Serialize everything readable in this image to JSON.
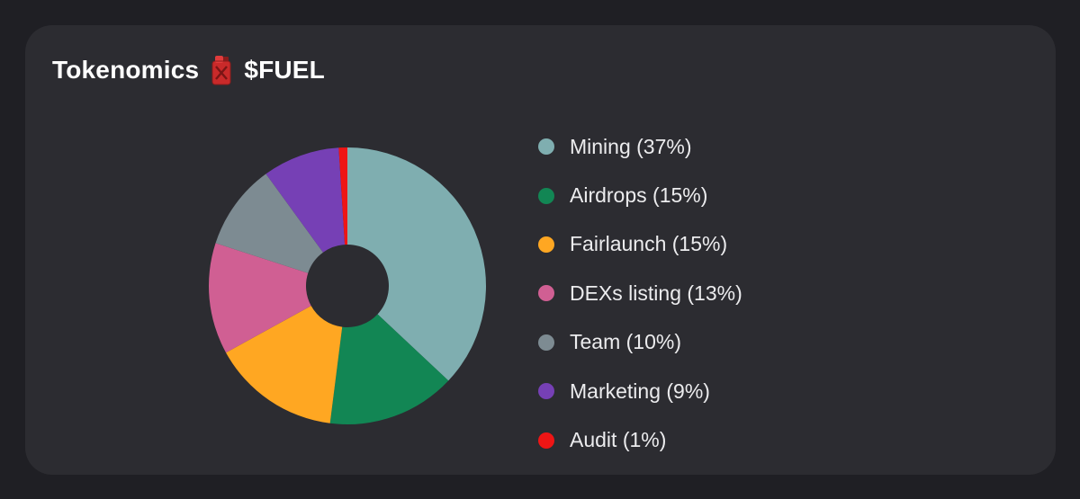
{
  "header": {
    "title_prefix": "Tokenomics",
    "title_suffix": "$FUEL",
    "icon": "fuel-canister-icon"
  },
  "colors": {
    "page_background": "#1f1f24",
    "card_background": "#2c2c31",
    "title_text": "#ffffff",
    "legend_text": "#ececee",
    "icon_red": "#c92a2a"
  },
  "chart_data": {
    "type": "pie",
    "donut": true,
    "slices": [
      {
        "label": "Mining",
        "value": 37,
        "color": "#7faeb0",
        "legend": "Mining (37%)"
      },
      {
        "label": "Airdrops",
        "value": 15,
        "color": "#128654",
        "legend": "Airdrops (15%)"
      },
      {
        "label": "Fairlaunch",
        "value": 15,
        "color": "#ffa722",
        "legend": "Fairlaunch (15%)"
      },
      {
        "label": "DEXs listing",
        "value": 13,
        "color": "#d05f93",
        "legend": "DEXs listing (13%)"
      },
      {
        "label": "Team",
        "value": 10,
        "color": "#7d8b92",
        "legend": "Team (10%)"
      },
      {
        "label": "Marketing",
        "value": 9,
        "color": "#7640b5",
        "legend": "Marketing (9%)"
      },
      {
        "label": "Audit",
        "value": 1,
        "color": "#ef1515",
        "legend": "Audit (1%)"
      }
    ],
    "legend_position": "right",
    "start": "top",
    "direction": "clockwise"
  }
}
